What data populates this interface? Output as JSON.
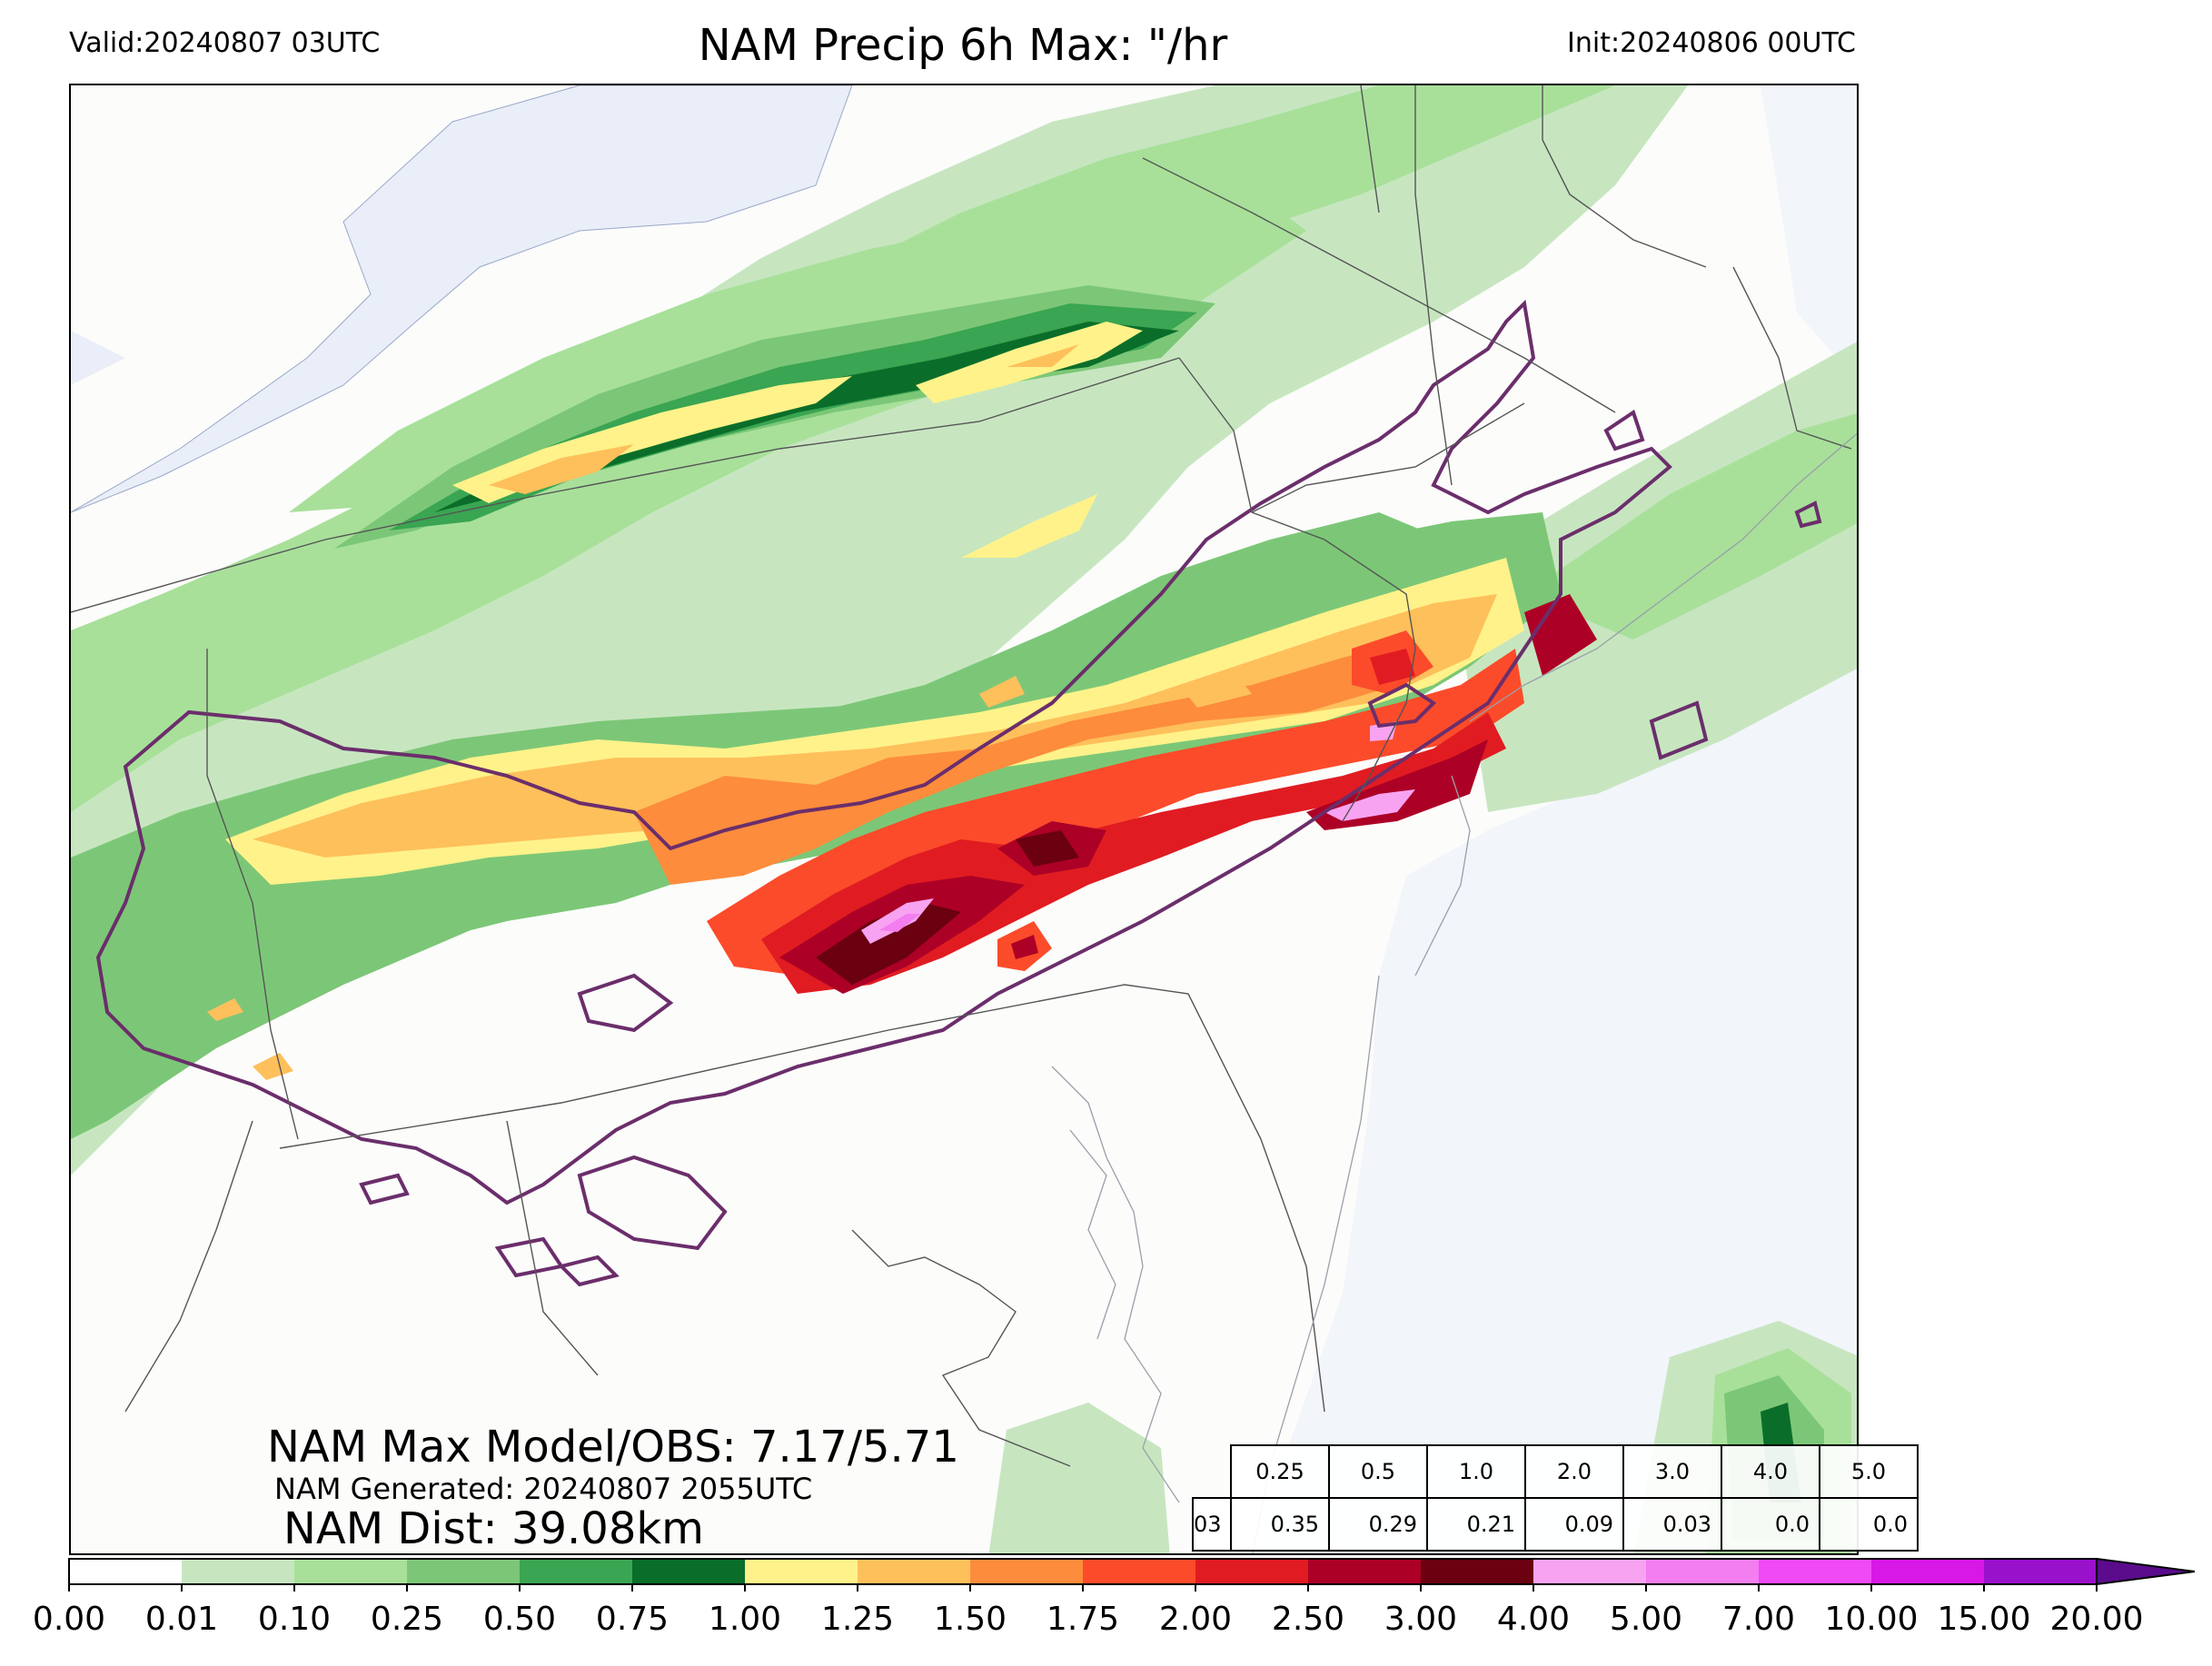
{
  "header": {
    "valid": "Valid:20240807 03UTC",
    "title": "NAM Precip 6h Max: \"/hr",
    "init": "Init:20240806 00UTC"
  },
  "stats": {
    "max_model_obs": "NAM Max Model/OBS: 7.17/5.71",
    "generated": "NAM Generated: 20240807 2055UTC",
    "distance": "NAM Dist: 39.08km"
  },
  "threshold_table": {
    "thresholds": [
      "0.25",
      "0.5",
      "1.0",
      "2.0",
      "3.0",
      "4.0",
      "5.0"
    ],
    "hour": "03",
    "values": [
      "0.35",
      "0.29",
      "0.21",
      "0.09",
      "0.03",
      "0.0",
      "0.0"
    ]
  },
  "colorbar": {
    "ticks": [
      "0.00",
      "0.01",
      "0.10",
      "0.25",
      "0.50",
      "0.75",
      "1.00",
      "1.25",
      "1.50",
      "1.75",
      "2.00",
      "2.50",
      "3.00",
      "4.00",
      "5.00",
      "7.00",
      "10.00",
      "15.00",
      "20.00"
    ],
    "colors": [
      "#ffffff",
      "#c7e6c0",
      "#a8e09a",
      "#7cc777",
      "#3aa552",
      "#0a6e2a",
      "#fff28a",
      "#fec05b",
      "#fd8c3c",
      "#fc4b2a",
      "#e01c22",
      "#ad0026",
      "#6a0010",
      "#f8a3f2",
      "#f27ef0",
      "#f04af5",
      "#d818e6",
      "#9a11cc"
    ],
    "extend_color": "#5a0c8c"
  },
  "map_colors": {
    "ocean": "#f2f5fa",
    "land": "#fcfcfb",
    "lakes": "#e9eef8",
    "contour": "#6b2e6b",
    "borders": "#666666"
  }
}
